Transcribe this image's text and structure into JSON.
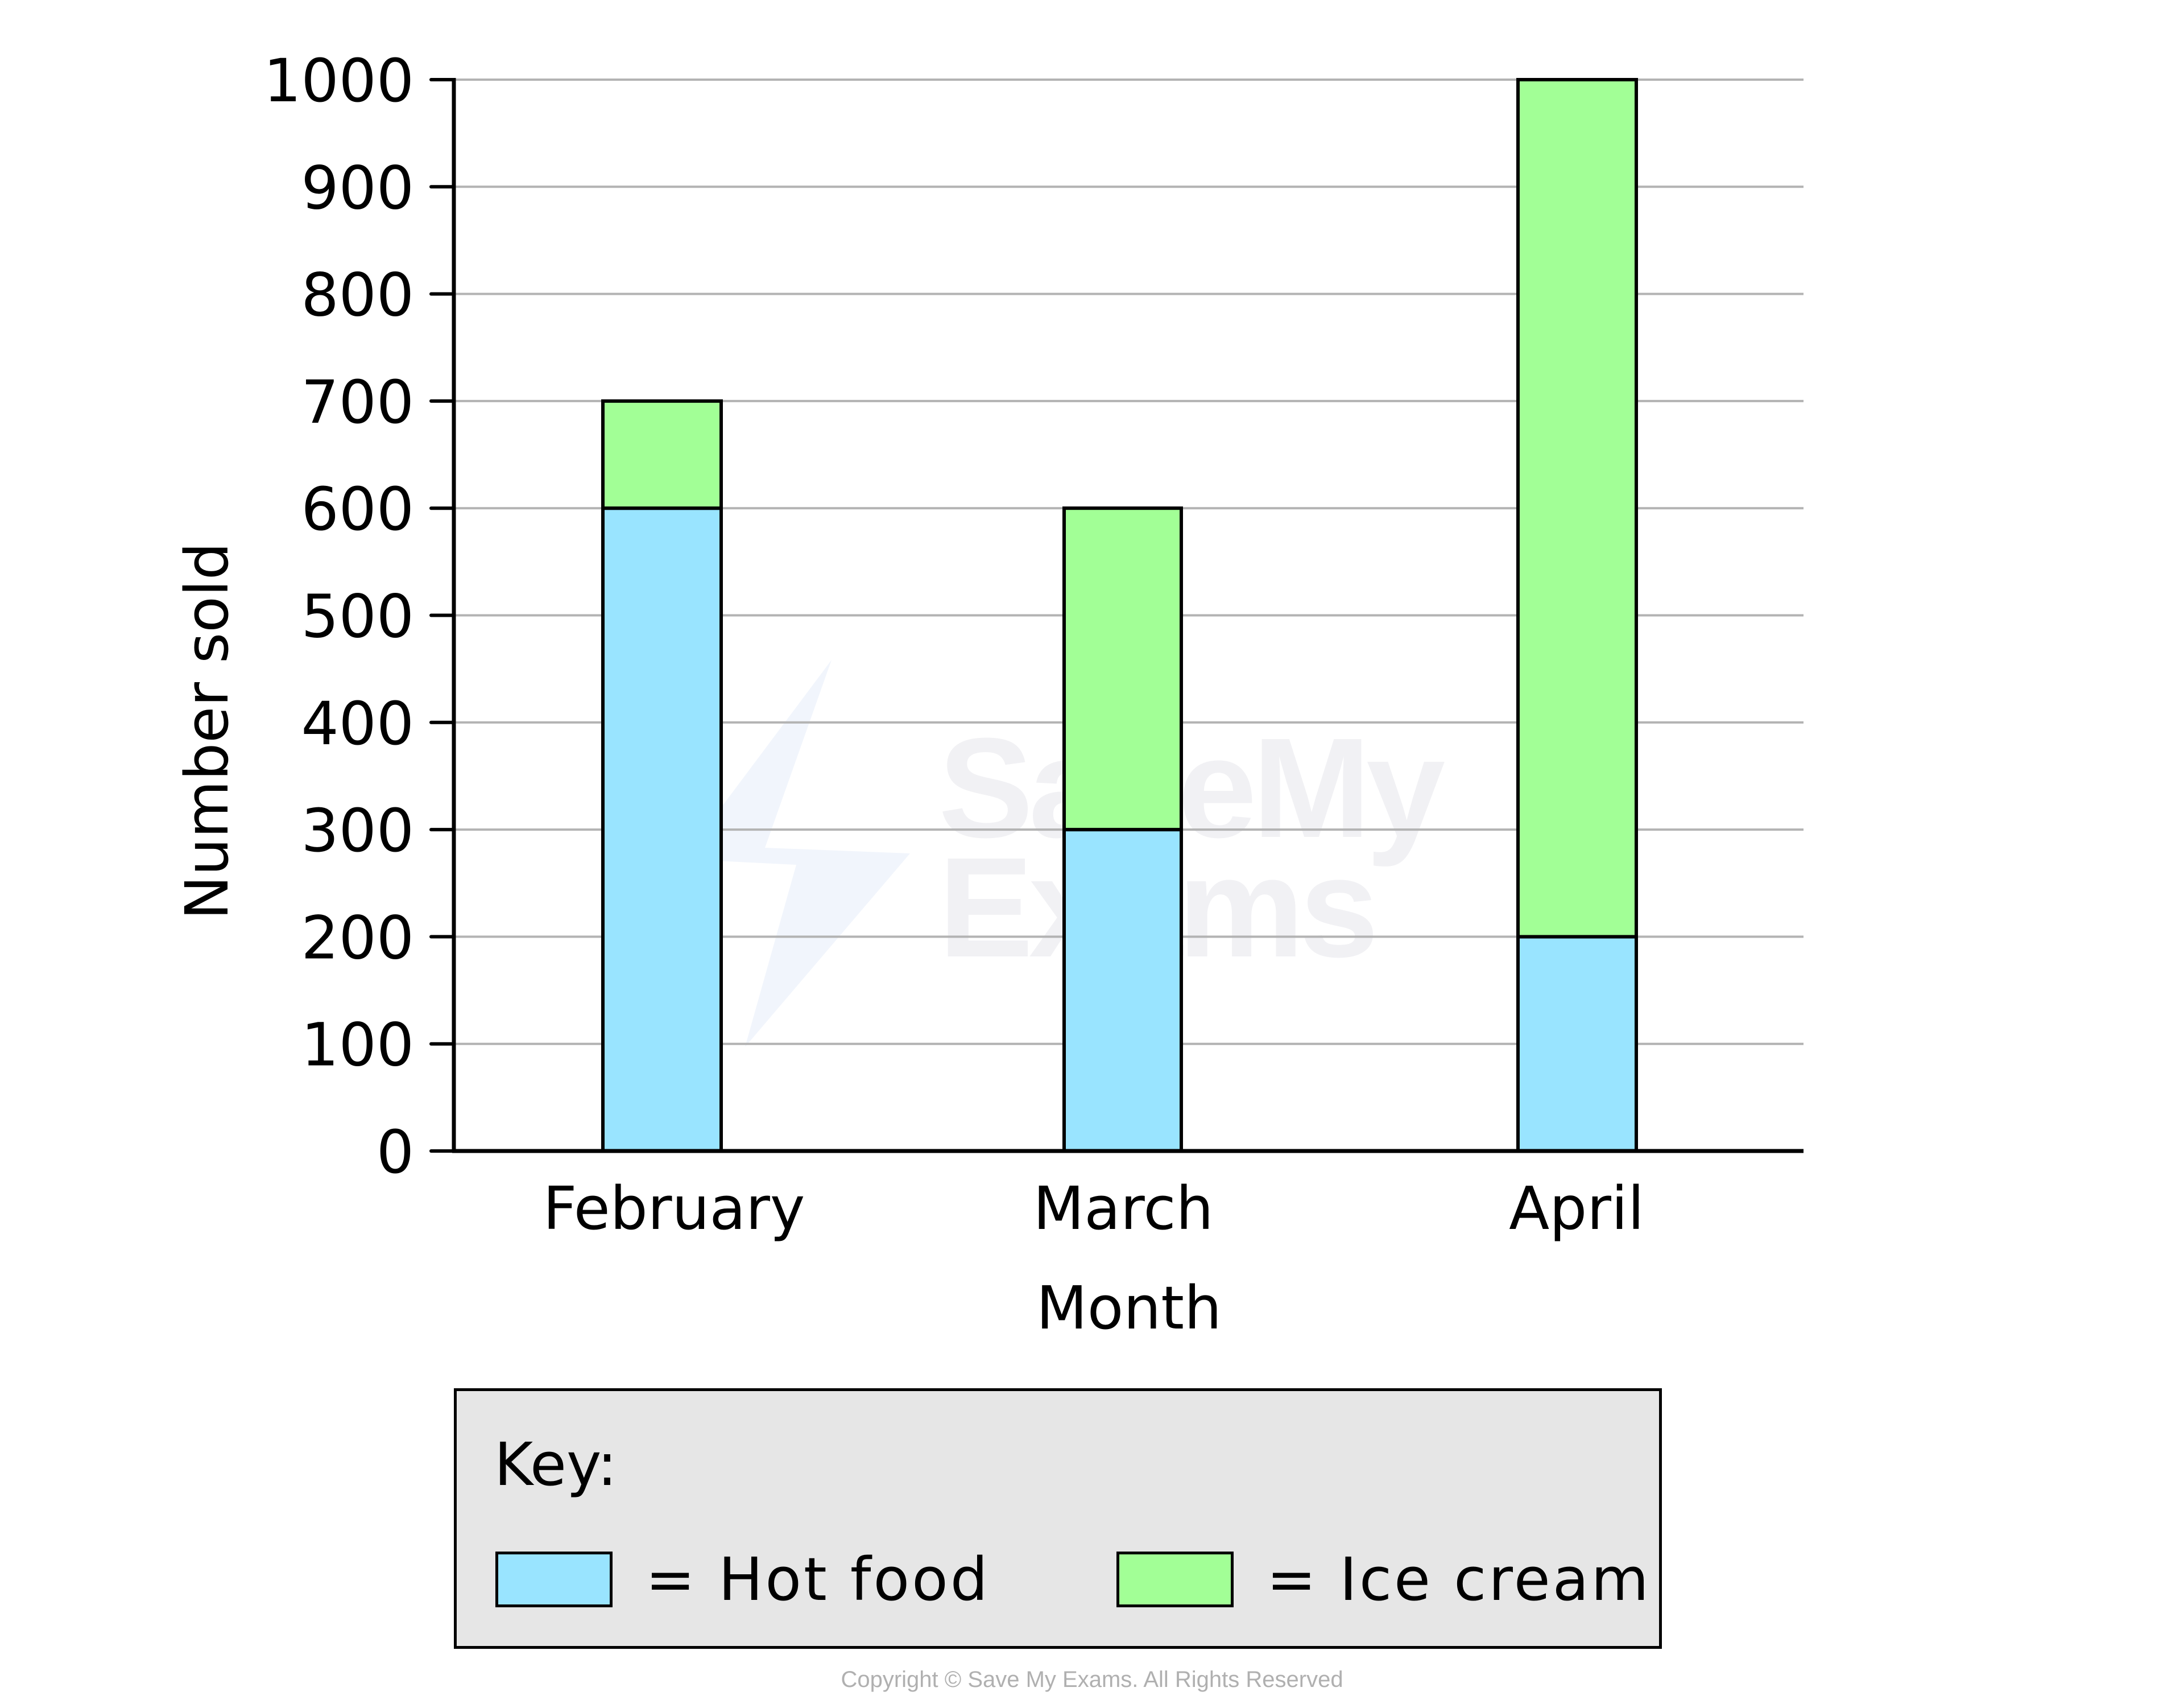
{
  "chart_data": {
    "type": "bar",
    "stacked": true,
    "title": "",
    "xlabel": "Month",
    "ylabel": "Number sold",
    "categories": [
      "February",
      "March",
      "April"
    ],
    "series": [
      {
        "name": "Hot food",
        "color": "#99E4FF",
        "values": [
          600,
          300,
          200
        ]
      },
      {
        "name": "Ice cream",
        "color": "#A2FF96",
        "values": [
          100,
          300,
          800
        ]
      }
    ],
    "totals": [
      700,
      600,
      1000
    ],
    "ylim": [
      0,
      1000
    ],
    "yticks": [
      0,
      100,
      200,
      300,
      400,
      500,
      600,
      700,
      800,
      900,
      1000
    ],
    "grid": true,
    "legend_position": "bottom"
  },
  "axes": {
    "x_title": "Month",
    "y_title": "Number sold",
    "y_tick_labels": [
      "0",
      "100",
      "200",
      "300",
      "400",
      "500",
      "600",
      "700",
      "800",
      "900",
      "1000"
    ],
    "category_labels": [
      "February",
      "March",
      "April"
    ]
  },
  "legend": {
    "title": "Key:",
    "items": [
      {
        "label": "= Hot food",
        "color": "#99E4FF"
      },
      {
        "label": "= Ice cream",
        "color": "#A2FF96"
      }
    ]
  },
  "colors": {
    "hot_food": "#99E4FF",
    "ice_cream": "#A2FF96",
    "grid": "#b3b3b3",
    "axis": "#000000",
    "legend_bg": "#e6e6e6"
  },
  "watermark": {
    "line1": "SaveMy",
    "line2": "Exams"
  },
  "footer": {
    "copyright": "Copyright © Save My Exams. All Rights Reserved"
  }
}
